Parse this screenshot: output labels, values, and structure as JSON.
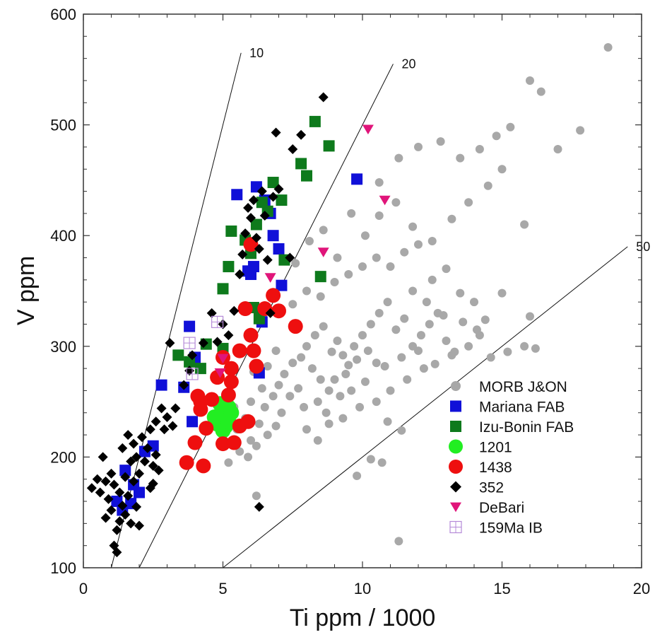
{
  "chart_data": {
    "type": "scatter",
    "xlabel": "Ti ppm / 1000",
    "ylabel": "V ppm",
    "xlim": [
      0,
      20
    ],
    "ylim": [
      100,
      600
    ],
    "x_ticks": [
      0,
      5,
      10,
      15,
      20
    ],
    "y_ticks": [
      100,
      200,
      300,
      400,
      500,
      600
    ],
    "grid": false,
    "legend_position": "lower-right",
    "reference_lines": [
      {
        "label": "10",
        "ratio": 10
      },
      {
        "label": "20",
        "ratio": 20
      },
      {
        "label": "50",
        "ratio": 50
      }
    ],
    "series": [
      {
        "name": "MORB J&ON",
        "marker": "circle",
        "color": "#a8a8a8",
        "points": [
          [
            5.2,
            195
          ],
          [
            5.6,
            205
          ],
          [
            6.0,
            215
          ],
          [
            6.3,
            230
          ],
          [
            6.5,
            245
          ],
          [
            6.8,
            255
          ],
          [
            7.0,
            265
          ],
          [
            7.2,
            275
          ],
          [
            7.5,
            285
          ],
          [
            7.8,
            290
          ],
          [
            8.0,
            300
          ],
          [
            8.3,
            310
          ],
          [
            8.6,
            318
          ],
          [
            8.9,
            295
          ],
          [
            9.1,
            305
          ],
          [
            9.3,
            292
          ],
          [
            9.5,
            283
          ],
          [
            9.7,
            300
          ],
          [
            10.0,
            310
          ],
          [
            10.3,
            320
          ],
          [
            10.6,
            330
          ],
          [
            10.9,
            340
          ],
          [
            11.2,
            315
          ],
          [
            11.5,
            325
          ],
          [
            11.8,
            300
          ],
          [
            12.1,
            310
          ],
          [
            12.4,
            320
          ],
          [
            12.7,
            330
          ],
          [
            13.0,
            305
          ],
          [
            13.3,
            295
          ],
          [
            8.2,
            280
          ],
          [
            8.5,
            270
          ],
          [
            8.8,
            260
          ],
          [
            9.0,
            270
          ],
          [
            9.4,
            275
          ],
          [
            9.8,
            288
          ],
          [
            10.2,
            296
          ],
          [
            10.5,
            285
          ],
          [
            7.4,
            255
          ],
          [
            7.7,
            262
          ],
          [
            7.1,
            240
          ],
          [
            6.9,
            228
          ],
          [
            6.6,
            220
          ],
          [
            6.2,
            210
          ],
          [
            5.9,
            200
          ],
          [
            7.9,
            245
          ],
          [
            8.4,
            250
          ],
          [
            8.7,
            240
          ],
          [
            9.2,
            255
          ],
          [
            9.6,
            260
          ],
          [
            10.1,
            268
          ],
          [
            10.8,
            282
          ],
          [
            11.4,
            290
          ],
          [
            12.0,
            296
          ],
          [
            12.6,
            284
          ],
          [
            13.2,
            292
          ],
          [
            13.8,
            300
          ],
          [
            14.2,
            310
          ],
          [
            14.6,
            290
          ],
          [
            15.2,
            295
          ],
          [
            15.8,
            300
          ],
          [
            16.2,
            298
          ],
          [
            8.0,
            225
          ],
          [
            8.4,
            215
          ],
          [
            8.8,
            230
          ],
          [
            9.3,
            235
          ],
          [
            9.9,
            245
          ],
          [
            10.5,
            250
          ],
          [
            11.0,
            260
          ],
          [
            11.6,
            270
          ],
          [
            12.2,
            280
          ],
          [
            9.8,
            183
          ],
          [
            10.3,
            198
          ],
          [
            10.7,
            195
          ],
          [
            10.9,
            232
          ],
          [
            11.4,
            224
          ],
          [
            11.3,
            124
          ],
          [
            7.5,
            338
          ],
          [
            8.0,
            350
          ],
          [
            8.5,
            345
          ],
          [
            9.0,
            358
          ],
          [
            9.5,
            365
          ],
          [
            10.0,
            372
          ],
          [
            10.5,
            380
          ],
          [
            11.0,
            372
          ],
          [
            11.5,
            385
          ],
          [
            12.0,
            392
          ],
          [
            12.5,
            360
          ],
          [
            13.0,
            370
          ],
          [
            13.5,
            348
          ],
          [
            14.0,
            340
          ],
          [
            7.6,
            375
          ],
          [
            8.1,
            395
          ],
          [
            8.6,
            405
          ],
          [
            9.1,
            380
          ],
          [
            9.6,
            420
          ],
          [
            10.1,
            400
          ],
          [
            10.6,
            418
          ],
          [
            11.2,
            430
          ],
          [
            11.8,
            408
          ],
          [
            12.5,
            395
          ],
          [
            13.2,
            415
          ],
          [
            13.8,
            430
          ],
          [
            14.5,
            445
          ],
          [
            15.0,
            460
          ],
          [
            10.6,
            448
          ],
          [
            11.3,
            470
          ],
          [
            12.0,
            480
          ],
          [
            12.8,
            485
          ],
          [
            13.5,
            470
          ],
          [
            14.2,
            478
          ],
          [
            14.8,
            490
          ],
          [
            15.3,
            498
          ],
          [
            16.0,
            540
          ],
          [
            16.4,
            530
          ],
          [
            17.0,
            478
          ],
          [
            17.8,
            495
          ],
          [
            18.8,
            570
          ],
          [
            15.8,
            410
          ],
          [
            16.0,
            327
          ],
          [
            15.0,
            348
          ],
          [
            14.4,
            324
          ],
          [
            11.8,
            350
          ],
          [
            12.3,
            340
          ],
          [
            12.9,
            328
          ],
          [
            13.6,
            322
          ],
          [
            14.1,
            315
          ],
          [
            6.2,
            165
          ],
          [
            6.0,
            250
          ],
          [
            6.4,
            262
          ],
          [
            6.1,
            277
          ],
          [
            6.6,
            282
          ],
          [
            6.9,
            296
          ],
          [
            5.5,
            225
          ],
          [
            5.8,
            235
          ],
          [
            5.4,
            245
          ]
        ]
      },
      {
        "name": "Mariana FAB",
        "marker": "square",
        "color": "#1010d8",
        "points": [
          [
            1.2,
            160
          ],
          [
            1.4,
            152
          ],
          [
            1.5,
            188
          ],
          [
            1.8,
            175
          ],
          [
            2.0,
            168
          ],
          [
            1.7,
            158
          ],
          [
            2.2,
            205
          ],
          [
            2.5,
            210
          ],
          [
            2.8,
            265
          ],
          [
            3.6,
            263
          ],
          [
            3.8,
            318
          ],
          [
            3.9,
            232
          ],
          [
            4.0,
            290
          ],
          [
            5.5,
            437
          ],
          [
            5.9,
            368
          ],
          [
            6.1,
            372
          ],
          [
            6.2,
            444
          ],
          [
            6.5,
            432
          ],
          [
            6.7,
            420
          ],
          [
            6.8,
            400
          ],
          [
            7.0,
            388
          ],
          [
            7.1,
            355
          ],
          [
            6.3,
            276
          ],
          [
            6.4,
            322
          ],
          [
            9.8,
            451
          ],
          [
            6.0,
            365
          ]
        ]
      },
      {
        "name": "Izu-Bonin FAB",
        "marker": "square",
        "color": "#0e7a1c",
        "points": [
          [
            3.4,
            292
          ],
          [
            3.8,
            286
          ],
          [
            4.2,
            280
          ],
          [
            4.4,
            302
          ],
          [
            5.0,
            298
          ],
          [
            5.0,
            352
          ],
          [
            5.2,
            372
          ],
          [
            5.3,
            404
          ],
          [
            5.8,
            396
          ],
          [
            6.0,
            384
          ],
          [
            6.2,
            410
          ],
          [
            6.4,
            430
          ],
          [
            6.6,
            422
          ],
          [
            6.8,
            448
          ],
          [
            7.1,
            432
          ],
          [
            7.2,
            378
          ],
          [
            7.8,
            465
          ],
          [
            8.0,
            454
          ],
          [
            8.3,
            503
          ],
          [
            8.8,
            481
          ],
          [
            8.5,
            363
          ],
          [
            6.1,
            335
          ],
          [
            6.3,
            325
          ]
        ]
      },
      {
        "name": "1201",
        "marker": "circle",
        "color": "#22ee22",
        "points": [
          [
            4.8,
            230
          ],
          [
            5.0,
            238
          ],
          [
            5.1,
            228
          ],
          [
            5.2,
            245
          ],
          [
            4.9,
            248
          ],
          [
            5.3,
            240
          ],
          [
            5.0,
            224
          ],
          [
            4.7,
            236
          ],
          [
            5.2,
            232
          ]
        ]
      },
      {
        "name": "1438",
        "marker": "circle",
        "color": "#ee0f0f",
        "points": [
          [
            3.7,
            195
          ],
          [
            4.0,
            213
          ],
          [
            4.1,
            255
          ],
          [
            4.2,
            243
          ],
          [
            4.3,
            192
          ],
          [
            4.4,
            226
          ],
          [
            4.6,
            252
          ],
          [
            4.8,
            272
          ],
          [
            5.0,
            212
          ],
          [
            5.2,
            256
          ],
          [
            5.3,
            268
          ],
          [
            5.4,
            213
          ],
          [
            5.6,
            228
          ],
          [
            5.6,
            296
          ],
          [
            5.8,
            334
          ],
          [
            5.9,
            232
          ],
          [
            6.0,
            310
          ],
          [
            6.1,
            296
          ],
          [
            6.2,
            282
          ],
          [
            6.5,
            334
          ],
          [
            6.8,
            346
          ],
          [
            7.0,
            332
          ],
          [
            7.6,
            318
          ],
          [
            5.0,
            290
          ],
          [
            5.3,
            280
          ],
          [
            4.2,
            250
          ],
          [
            6.0,
            392
          ]
        ]
      },
      {
        "name": "352",
        "marker": "diamond",
        "color": "#000000",
        "points": [
          [
            0.3,
            172
          ],
          [
            0.5,
            180
          ],
          [
            0.6,
            168
          ],
          [
            0.7,
            200
          ],
          [
            0.8,
            178
          ],
          [
            0.8,
            145
          ],
          [
            0.9,
            162
          ],
          [
            1.0,
            185
          ],
          [
            1.0,
            152
          ],
          [
            1.1,
            175
          ],
          [
            1.1,
            120
          ],
          [
            1.2,
            134
          ],
          [
            1.2,
            114
          ],
          [
            1.3,
            168
          ],
          [
            1.3,
            142
          ],
          [
            1.4,
            208
          ],
          [
            1.4,
            156
          ],
          [
            1.5,
            182
          ],
          [
            1.5,
            148
          ],
          [
            1.6,
            220
          ],
          [
            1.6,
            165
          ],
          [
            1.7,
            196
          ],
          [
            1.7,
            140
          ],
          [
            1.8,
            178
          ],
          [
            1.8,
            212
          ],
          [
            1.9,
            155
          ],
          [
            1.9,
            200
          ],
          [
            2.0,
            185
          ],
          [
            2.1,
            218
          ],
          [
            2.2,
            196
          ],
          [
            2.3,
            208
          ],
          [
            2.4,
            172
          ],
          [
            2.4,
            225
          ],
          [
            2.5,
            192
          ],
          [
            2.6,
            202
          ],
          [
            2.6,
            232
          ],
          [
            2.7,
            188
          ],
          [
            2.8,
            244
          ],
          [
            2.9,
            225
          ],
          [
            3.0,
            236
          ],
          [
            3.1,
            303
          ],
          [
            3.2,
            228
          ],
          [
            3.3,
            244
          ],
          [
            2.0,
            138
          ],
          [
            2.5,
            176
          ],
          [
            3.6,
            265
          ],
          [
            3.8,
            278
          ],
          [
            3.9,
            292
          ],
          [
            4.3,
            303
          ],
          [
            4.6,
            330
          ],
          [
            4.8,
            304
          ],
          [
            5.0,
            320
          ],
          [
            5.2,
            310
          ],
          [
            5.4,
            332
          ],
          [
            5.6,
            365
          ],
          [
            5.7,
            383
          ],
          [
            5.8,
            402
          ],
          [
            5.9,
            425
          ],
          [
            6.0,
            416
          ],
          [
            6.1,
            432
          ],
          [
            6.2,
            398
          ],
          [
            6.3,
            388
          ],
          [
            6.4,
            440
          ],
          [
            6.5,
            418
          ],
          [
            6.6,
            378
          ],
          [
            6.8,
            435
          ],
          [
            7.0,
            442
          ],
          [
            7.4,
            380
          ],
          [
            6.9,
            493
          ],
          [
            7.5,
            478
          ],
          [
            7.8,
            491
          ],
          [
            8.6,
            525
          ],
          [
            6.3,
            155
          ],
          [
            6.7,
            330
          ]
        ]
      },
      {
        "name": "DeBari",
        "marker": "triangle-down",
        "color": "#e0157a",
        "points": [
          [
            10.2,
            496
          ],
          [
            10.8,
            432
          ],
          [
            8.6,
            385
          ],
          [
            6.7,
            362
          ],
          [
            5.0,
            289
          ],
          [
            4.9,
            276
          ]
        ]
      },
      {
        "name": "159Ma IB",
        "marker": "square-cross",
        "color": "#b58ad8",
        "points": [
          [
            3.8,
            303
          ],
          [
            3.9,
            275
          ],
          [
            4.8,
            322
          ]
        ]
      }
    ]
  }
}
